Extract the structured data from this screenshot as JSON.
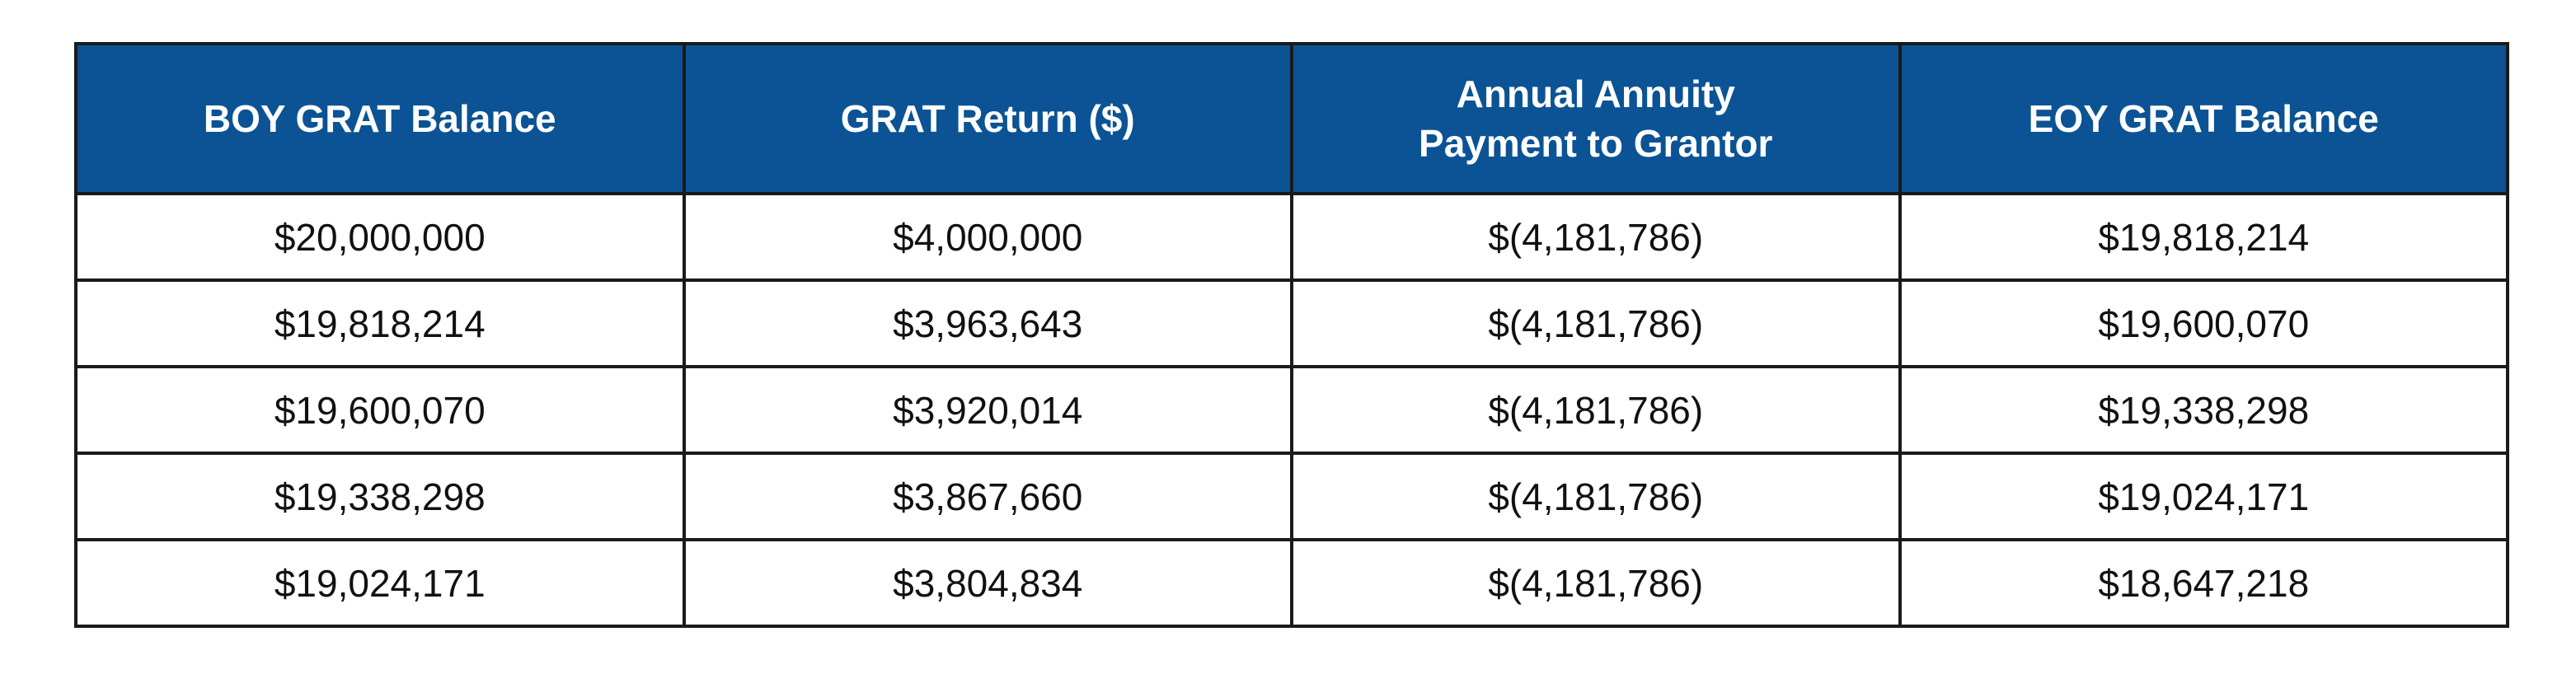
{
  "colors": {
    "header_background": "#0b5394",
    "header_text": "#ffffff",
    "cell_text": "#111111",
    "border": "#1a1a1a"
  },
  "table": {
    "headers": [
      "BOY GRAT Balance",
      "GRAT Return ($)",
      "Annual Annuity\nPayment to Grantor",
      "EOY GRAT Balance"
    ],
    "rows": [
      [
        "$20,000,000",
        "$4,000,000",
        "$(4,181,786)",
        "$19,818,214"
      ],
      [
        "$19,818,214",
        "$3,963,643",
        "$(4,181,786)",
        "$19,600,070"
      ],
      [
        "$19,600,070",
        "$3,920,014",
        "$(4,181,786)",
        "$19,338,298"
      ],
      [
        "$19,338,298",
        "$3,867,660",
        "$(4,181,786)",
        "$19,024,171"
      ],
      [
        "$19,024,171",
        "$3,804,834",
        "$(4,181,786)",
        "$18,647,218"
      ]
    ]
  }
}
